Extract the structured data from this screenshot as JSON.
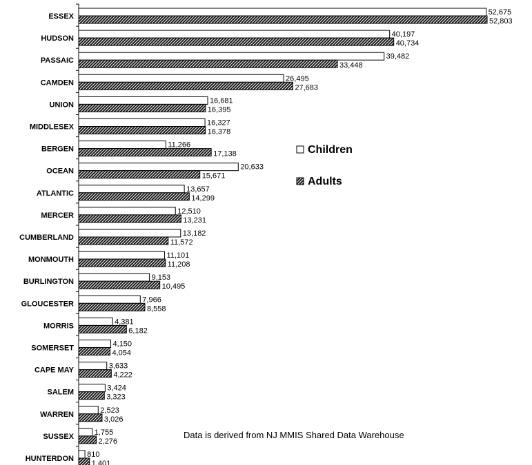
{
  "chart_data": {
    "type": "bar",
    "orientation": "horizontal",
    "categories": [
      "ESSEX",
      "HUDSON",
      "PASSAIC",
      "CAMDEN",
      "UNION",
      "MIDDLESEX",
      "BERGEN",
      "OCEAN",
      "ATLANTIC",
      "MERCER",
      "CUMBERLAND",
      "MONMOUTH",
      "BURLINGTON",
      "GLOUCESTER",
      "MORRIS",
      "SOMERSET",
      "CAPE MAY",
      "SALEM",
      "WARREN",
      "SUSSEX",
      "HUNTERDON"
    ],
    "series": [
      {
        "name": "Children",
        "values": [
          52675,
          40197,
          39482,
          26495,
          16681,
          16327,
          11266,
          20633,
          13657,
          12510,
          13182,
          11101,
          9153,
          7966,
          4381,
          4150,
          3633,
          3424,
          2523,
          1755,
          810
        ],
        "labels": [
          "52,675",
          "40,197",
          "39,482",
          "26,495",
          "16,681",
          "16,327",
          "11,266",
          "20,633",
          "13,657",
          "12,510",
          "13,182",
          "11,101",
          "9,153",
          "7,966",
          "4,381",
          "4,150",
          "3,633",
          "3,424",
          "2,523",
          "1,755",
          "810"
        ],
        "fill": "#ffffff",
        "pattern": "none"
      },
      {
        "name": "Adults",
        "values": [
          52803,
          40734,
          33448,
          27683,
          16395,
          16378,
          17138,
          15671,
          14299,
          13231,
          11572,
          11208,
          10495,
          8558,
          6182,
          4054,
          4222,
          3323,
          3026,
          2276,
          1401
        ],
        "labels": [
          "52,803",
          "40,734",
          "33,448",
          "27,683",
          "16,395",
          "16,378",
          "17,138",
          "15,671",
          "14,299",
          "13,231",
          "11,572",
          "11,208",
          "10,495",
          "8,558",
          "6,182",
          "4,054",
          "4,222",
          "3,323",
          "3,026",
          "2,276",
          "1,401"
        ],
        "fill": "#1a1a1a",
        "pattern": "diagonal-hatch"
      }
    ],
    "xlim": [
      0,
      55000
    ],
    "legend": {
      "placement": "right-middle",
      "items": [
        {
          "label": "Children",
          "symbol": "open-square"
        },
        {
          "label": "Adults",
          "symbol": "hatched-square"
        }
      ]
    },
    "annotations": [
      "Data is derived from NJ MMIS Shared Data Warehouse"
    ],
    "grid": false
  }
}
